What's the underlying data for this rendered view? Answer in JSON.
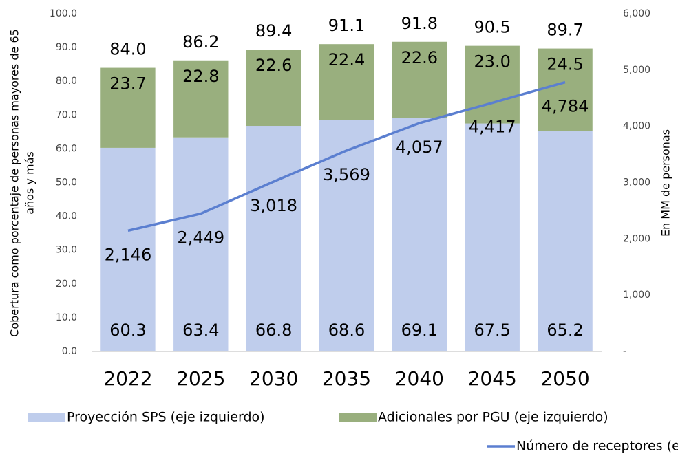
{
  "chart_data": {
    "type": "bar",
    "stacked": true,
    "y_axis_label": [
      "Cobertura como porcentaje de personas mayores de 65",
      "años y más"
    ],
    "y2_axis_label": "En MM de personas",
    "categories": [
      "2022",
      "2025",
      "2030",
      "2035",
      "2040",
      "2045",
      "2050"
    ],
    "series": [
      {
        "name": "Proyección SPS (eje izquierdo)",
        "type": "bar",
        "color": "#bfcdec",
        "values": [
          60.3,
          63.4,
          66.8,
          68.6,
          69.1,
          67.5,
          65.2
        ]
      },
      {
        "name": "Adicionales por PGU (eje izquierdo)",
        "type": "bar",
        "color": "#99af7e",
        "values": [
          23.7,
          22.8,
          22.6,
          22.4,
          22.6,
          23.0,
          24.5
        ],
        "value_labels": [
          "23.7",
          "22.8",
          "22.6",
          "22.4",
          "22.6",
          "23.0",
          "24.5"
        ]
      },
      {
        "name": "Número de receptores (eje derecho)",
        "type": "line",
        "axis": "y2",
        "color": "#5b7fd0",
        "values": [
          2146,
          2449,
          3018,
          3569,
          4057,
          4417,
          4784
        ],
        "value_labels": [
          "2,146",
          "2,449",
          "3,018",
          "3,569",
          "4,057",
          "4,417",
          "4,784"
        ]
      }
    ],
    "total_labels": [
      "84.0",
      "86.2",
      "89.4",
      "91.1",
      "91.8",
      "90.5",
      "89.7"
    ],
    "ylim": [
      0,
      100
    ],
    "yticks": [
      {
        "value": 0,
        "label": "0.0"
      },
      {
        "value": 10,
        "label": "10.0"
      },
      {
        "value": 20,
        "label": "20.0"
      },
      {
        "value": 30,
        "label": "30.0"
      },
      {
        "value": 40,
        "label": "40.0"
      },
      {
        "value": 50,
        "label": "50.0"
      },
      {
        "value": 60,
        "label": "60.0"
      },
      {
        "value": 70,
        "label": "70.0"
      },
      {
        "value": 80,
        "label": "80.0"
      },
      {
        "value": 90,
        "label": "90.0"
      },
      {
        "value": 100,
        "label": "100.0"
      }
    ],
    "y2lim": [
      0,
      6000
    ],
    "y2ticks": [
      {
        "value": 0,
        "label": "-"
      },
      {
        "value": 1000,
        "label": "1,000"
      },
      {
        "value": 2000,
        "label": "2,000"
      },
      {
        "value": 3000,
        "label": "3,000"
      },
      {
        "value": 4000,
        "label": "4,000"
      },
      {
        "value": 5000,
        "label": "5,000"
      },
      {
        "value": 6000,
        "label": "6,000"
      }
    ],
    "grid": false,
    "legend": "bottom"
  }
}
